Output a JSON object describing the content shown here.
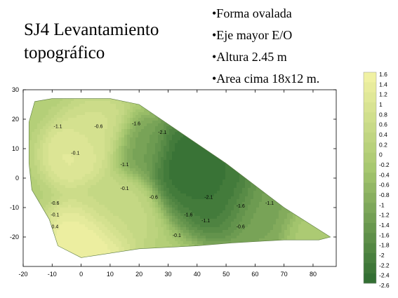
{
  "slide": {
    "title_line1": "SJ4 Levantamiento",
    "title_line2": "topográfico",
    "bullets": [
      "•Forma ovalada",
      "•Eje mayor E/O",
      "•Altura 2.45 m",
      "•Area cima 18x12 m."
    ]
  },
  "chart_data": {
    "type": "heatmap",
    "subtype": "contour",
    "title": "",
    "xlabel": "",
    "ylabel": "",
    "xlim": [
      -20,
      88
    ],
    "ylim": [
      -30,
      30
    ],
    "x_ticks": [
      -20,
      -10,
      0,
      10,
      20,
      30,
      40,
      50,
      60,
      70,
      80
    ],
    "y_ticks": [
      30,
      20,
      10,
      0,
      -10,
      -20
    ],
    "grid": false,
    "colorbar": {
      "placement": "right",
      "levels": [
        1.6,
        1.4,
        1.2,
        1,
        0.8,
        0.6,
        0.4,
        0.2,
        0,
        -0.2,
        -0.4,
        -0.6,
        -0.8,
        -1,
        -1.2,
        -1.4,
        -1.6,
        -1.8,
        -2,
        -2.2,
        -2.4,
        -2.6
      ],
      "color_high": "#F4F3A6",
      "color_mid": "#A8C870",
      "color_low": "#2E6B30"
    },
    "surveyed_area_outline": [
      [
        -18,
        19
      ],
      [
        -16,
        26
      ],
      [
        -10,
        27
      ],
      [
        10,
        27
      ],
      [
        20,
        25
      ],
      [
        50,
        5
      ],
      [
        70,
        -10
      ],
      [
        86,
        -20
      ],
      [
        82,
        -21
      ],
      [
        70,
        -21
      ],
      [
        52,
        -22
      ],
      [
        40,
        -23
      ],
      [
        20,
        -24
      ],
      [
        0,
        -27
      ],
      [
        -8,
        -23
      ],
      [
        -11,
        -14
      ],
      [
        -17,
        -4
      ],
      [
        -18,
        5
      ]
    ],
    "contour_labels": [
      {
        "text": "-1.1",
        "x": -8,
        "y": 17
      },
      {
        "text": "-0.6",
        "x": 6,
        "y": 17
      },
      {
        "text": "-1.6",
        "x": 19,
        "y": 18
      },
      {
        "text": "-2.1",
        "x": 28,
        "y": 15
      },
      {
        "text": "-0.1",
        "x": -2,
        "y": 8
      },
      {
        "text": "-1.1",
        "x": 15,
        "y": 4
      },
      {
        "text": "-0.1",
        "x": 15,
        "y": -4
      },
      {
        "text": "-0.6",
        "x": 25,
        "y": -7
      },
      {
        "text": "-2.1",
        "x": 44,
        "y": -7
      },
      {
        "text": "-1.6",
        "x": 55,
        "y": -10
      },
      {
        "text": "-1.1",
        "x": 65,
        "y": -9
      },
      {
        "text": "-0.6",
        "x": -9,
        "y": -9
      },
      {
        "text": "-0.1",
        "x": -9,
        "y": -13
      },
      {
        "text": "0.4",
        "x": -9,
        "y": -17
      },
      {
        "text": "-1.6",
        "x": 37,
        "y": -13
      },
      {
        "text": "-1.1",
        "x": 43,
        "y": -15
      },
      {
        "text": "-0.6",
        "x": 55,
        "y": -17
      },
      {
        "text": "-0.1",
        "x": 33,
        "y": -20
      }
    ],
    "surface_features": [
      {
        "x": -2,
        "y": 8,
        "value": 1.2,
        "spread": 7
      },
      {
        "x": 6,
        "y": 14,
        "value": 0.8,
        "spread": 8
      },
      {
        "x": 2,
        "y": -22,
        "value": 1.6,
        "spread": 9
      },
      {
        "x": 12,
        "y": -10,
        "value": 0.4,
        "spread": 9
      },
      {
        "x": 38,
        "y": 5,
        "value": -2.6,
        "spread": 10
      },
      {
        "x": 48,
        "y": -5,
        "value": -2.4,
        "spread": 10
      },
      {
        "x": 62,
        "y": -12,
        "value": -1.2,
        "spread": 9
      },
      {
        "x": 20,
        "y": 10,
        "value": -1.3,
        "spread": 7
      },
      {
        "x": 78,
        "y": -19,
        "value": -0.2,
        "spread": 6
      }
    ]
  }
}
